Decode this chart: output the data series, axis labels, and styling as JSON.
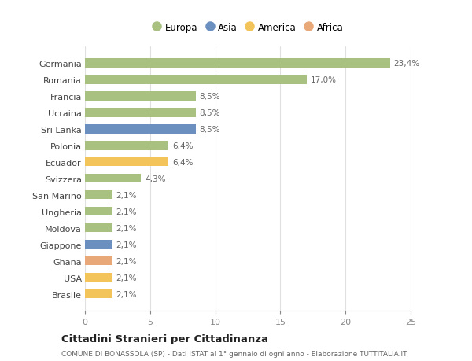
{
  "countries": [
    "Germania",
    "Romania",
    "Francia",
    "Ucraina",
    "Sri Lanka",
    "Polonia",
    "Ecuador",
    "Svizzera",
    "San Marino",
    "Ungheria",
    "Moldova",
    "Giappone",
    "Ghana",
    "USA",
    "Brasile"
  ],
  "values": [
    23.4,
    17.0,
    8.5,
    8.5,
    8.5,
    6.4,
    6.4,
    4.3,
    2.1,
    2.1,
    2.1,
    2.1,
    2.1,
    2.1,
    2.1
  ],
  "labels": [
    "23,4%",
    "17,0%",
    "8,5%",
    "8,5%",
    "8,5%",
    "6,4%",
    "6,4%",
    "4,3%",
    "2,1%",
    "2,1%",
    "2,1%",
    "2,1%",
    "2,1%",
    "2,1%",
    "2,1%"
  ],
  "continents": [
    "Europa",
    "Europa",
    "Europa",
    "Europa",
    "Asia",
    "Europa",
    "America",
    "Europa",
    "Europa",
    "Europa",
    "Europa",
    "Asia",
    "Africa",
    "America",
    "America"
  ],
  "colors": {
    "Europa": "#a8c080",
    "Asia": "#6b8fbf",
    "America": "#f2c45a",
    "Africa": "#e8a878"
  },
  "legend_order": [
    "Europa",
    "Asia",
    "America",
    "Africa"
  ],
  "legend_colors": [
    "#a8c080",
    "#6b8fbf",
    "#f2c45a",
    "#e8a878"
  ],
  "xlim": [
    0,
    25
  ],
  "xticks": [
    0,
    5,
    10,
    15,
    20,
    25
  ],
  "title": "Cittadini Stranieri per Cittadinanza",
  "subtitle": "COMUNE DI BONASSOLA (SP) - Dati ISTAT al 1° gennaio di ogni anno - Elaborazione TUTTITALIA.IT",
  "background_color": "#ffffff",
  "bar_height": 0.55,
  "grid_color": "#e0e0e0",
  "label_color": "#666666",
  "ytick_color": "#444444"
}
